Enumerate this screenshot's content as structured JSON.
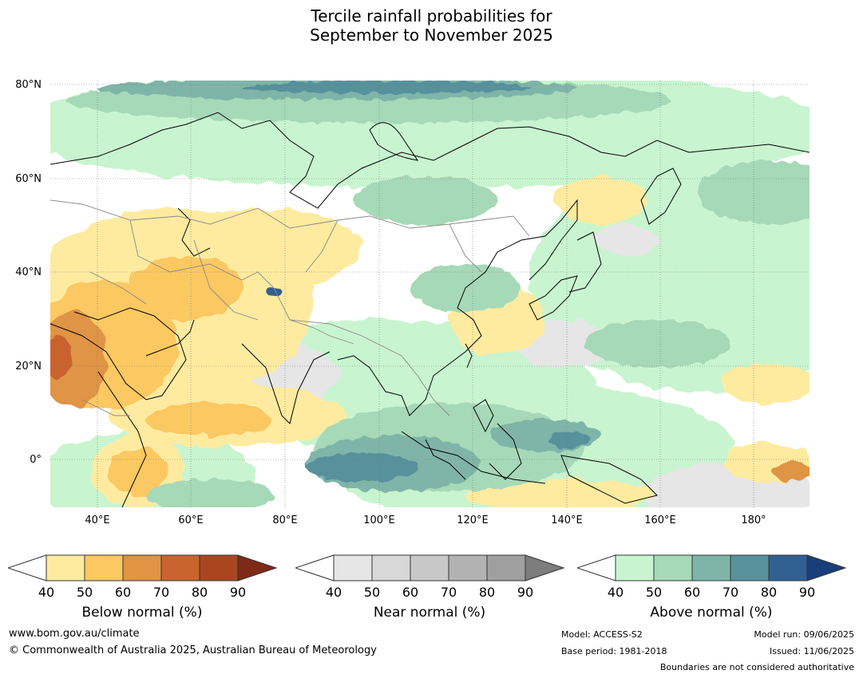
{
  "title": {
    "line1": "Tercile rainfall probabilities for",
    "line2": "September to November 2025"
  },
  "axes": {
    "lat_labels": [
      "80°N",
      "60°N",
      "40°N",
      "20°N",
      "0°"
    ],
    "lon_labels": [
      "40°E",
      "60°E",
      "80°E",
      "100°E",
      "120°E",
      "140°E",
      "160°E",
      "180°"
    ],
    "lat_range": [
      -10,
      81
    ],
    "lon_range": [
      30,
      192
    ]
  },
  "colorbars": [
    {
      "title": "Below normal (%)",
      "ticks": [
        "40",
        "50",
        "60",
        "70",
        "80",
        "90"
      ],
      "colors": [
        "#ffffff",
        "#feeba0",
        "#fcc862",
        "#e09444",
        "#c9642f",
        "#a9461f",
        "#7e2a16"
      ]
    },
    {
      "title": "Near normal (%)",
      "ticks": [
        "40",
        "50",
        "60",
        "70",
        "80",
        "90"
      ],
      "colors": [
        "#ffffff",
        "#e6e6e6",
        "#d8d8d8",
        "#c8c8c8",
        "#b2b2b2",
        "#a0a0a0",
        "#7d7d7d"
      ]
    },
    {
      "title": "Above normal (%)",
      "ticks": [
        "40",
        "50",
        "60",
        "70",
        "80",
        "90"
      ],
      "colors": [
        "#ffffff",
        "#c8f5cf",
        "#a6d9b8",
        "#7fb5a8",
        "#57919c",
        "#325f91",
        "#1a3e7a"
      ]
    }
  ],
  "footer": {
    "website": "www.bom.gov.au/climate",
    "copyright": "© Commonwealth of Australia 2025, Australian Bureau of Meteorology",
    "model": "Model: ACCESS-S2",
    "base_period": "Base period: 1981-2018",
    "model_run": "Model run: 09/06/2025",
    "issued": "Issued: 11/06/2025",
    "disclaimer": "Boundaries are not considered authoritative"
  }
}
